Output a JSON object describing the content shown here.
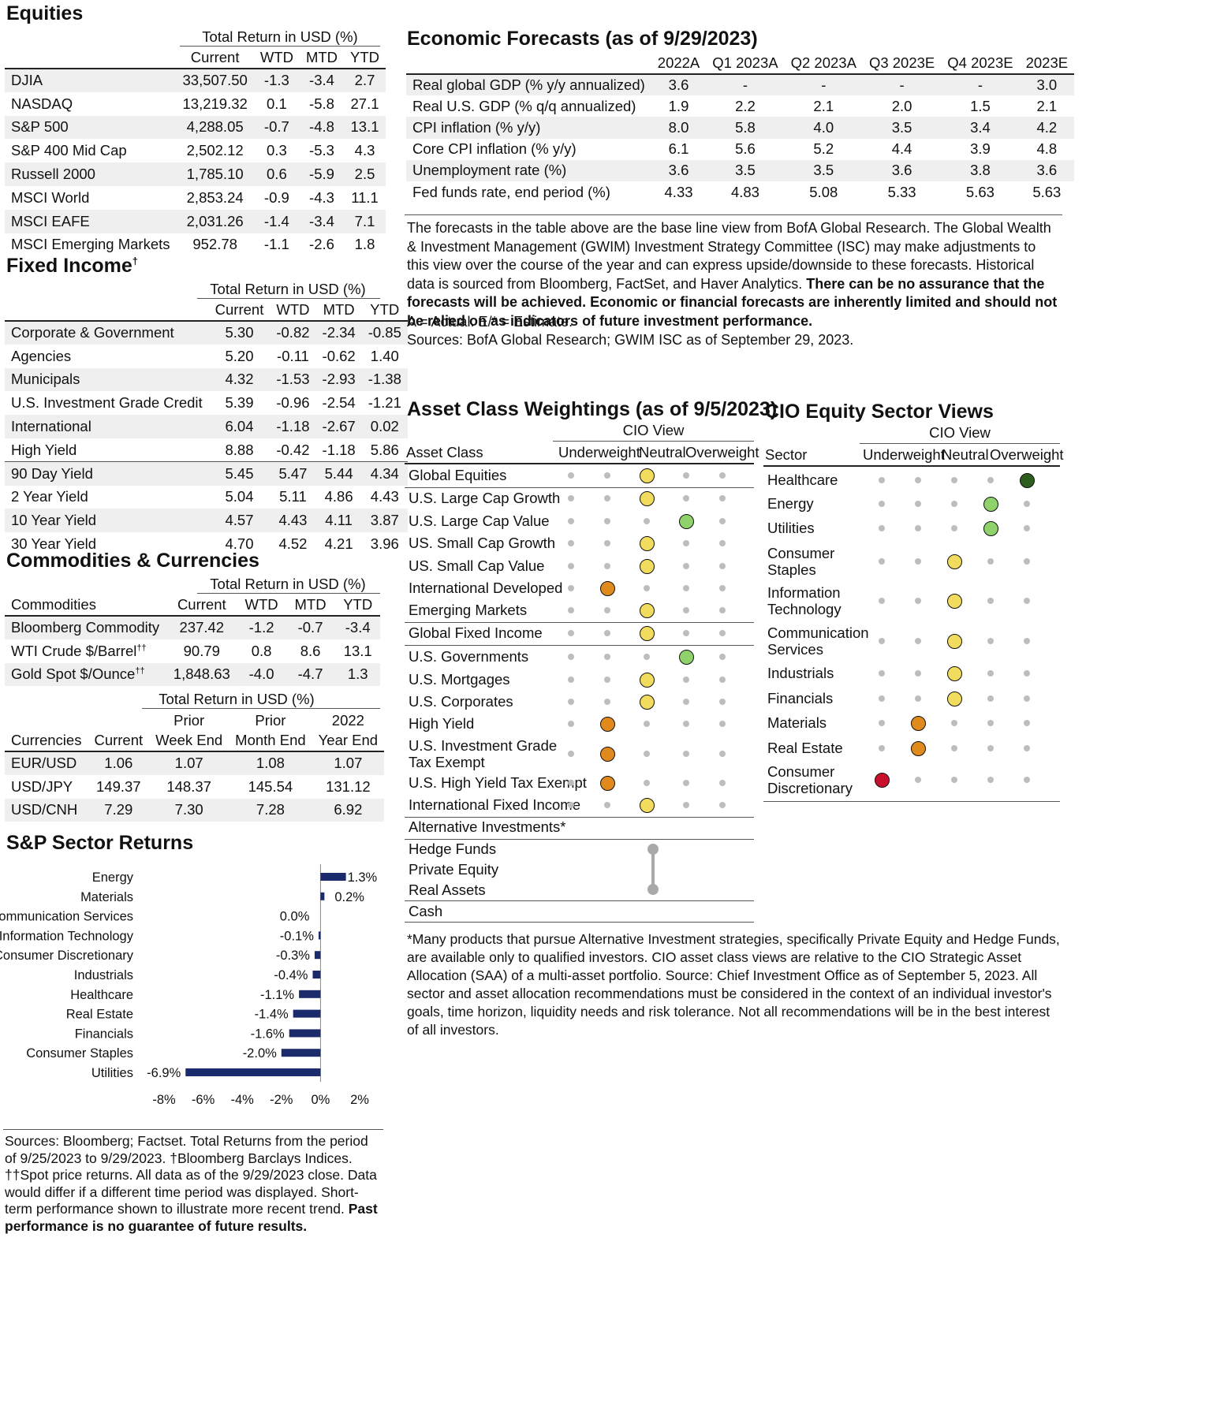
{
  "equities": {
    "title": "Equities",
    "group_header": "Total Return in USD (%)",
    "columns": [
      "",
      "Current",
      "WTD",
      "MTD",
      "YTD"
    ],
    "rows": [
      [
        "DJIA",
        "33,507.50",
        "-1.3",
        "-3.4",
        "2.7"
      ],
      [
        "NASDAQ",
        "13,219.32",
        "0.1",
        "-5.8",
        "27.1"
      ],
      [
        "S&P 500",
        "4,288.05",
        "-0.7",
        "-4.8",
        "13.1"
      ],
      [
        "S&P 400 Mid Cap",
        "2,502.12",
        "0.3",
        "-5.3",
        "4.3"
      ],
      [
        "Russell 2000",
        "1,785.10",
        "0.6",
        "-5.9",
        "2.5"
      ],
      [
        "MSCI World",
        "2,853.24",
        "-0.9",
        "-4.3",
        "11.1"
      ],
      [
        "MSCI EAFE",
        "2,031.26",
        "-1.4",
        "-3.4",
        "7.1"
      ],
      [
        "MSCI Emerging Markets",
        "952.78",
        "-1.1",
        "-2.6",
        "1.8"
      ]
    ]
  },
  "fixed_income": {
    "title": "Fixed Income",
    "title_mark": "†",
    "group_header": "Total Return in USD (%)",
    "columns": [
      "",
      "Current",
      "WTD",
      "MTD",
      "YTD"
    ],
    "rows": [
      [
        "Corporate & Government",
        "5.30",
        "-0.82",
        "-2.34",
        "-0.85"
      ],
      [
        "Agencies",
        "5.20",
        "-0.11",
        "-0.62",
        "1.40"
      ],
      [
        "Municipals",
        "4.32",
        "-1.53",
        "-2.93",
        "-1.38"
      ],
      [
        "U.S. Investment Grade Credit",
        "5.39",
        "-0.96",
        "-2.54",
        "-1.21"
      ],
      [
        "International",
        "6.04",
        "-1.18",
        "-2.67",
        "0.02"
      ],
      [
        "High Yield",
        "8.88",
        "-0.42",
        "-1.18",
        "5.86"
      ],
      [
        "90 Day Yield",
        "5.45",
        "5.47",
        "5.44",
        "4.34"
      ],
      [
        "2 Year Yield",
        "5.04",
        "5.11",
        "4.86",
        "4.43"
      ],
      [
        "10 Year Yield",
        "4.57",
        "4.43",
        "4.11",
        "3.87"
      ],
      [
        "30 Year Yield",
        "4.70",
        "4.52",
        "4.21",
        "3.96"
      ]
    ]
  },
  "commodities": {
    "title": "Commodities & Currencies",
    "group_header": "Total Return in USD (%)",
    "columns": [
      "Commodities",
      "Current",
      "WTD",
      "MTD",
      "YTD"
    ],
    "rows": [
      [
        "Bloomberg Commodity",
        "",
        "237.42",
        "-1.2",
        "-0.7",
        "-3.4"
      ],
      [
        "WTI Crude $/Barrel",
        "††",
        "90.79",
        "0.8",
        "8.6",
        "13.1"
      ],
      [
        "Gold Spot $/Ounce",
        "††",
        "1,848.63",
        "-4.0",
        "-4.7",
        "1.3"
      ]
    ]
  },
  "currencies": {
    "group_header": "Total Return in USD (%)",
    "columns_top": [
      "",
      "",
      "Prior",
      "Prior",
      "2022"
    ],
    "columns": [
      "Currencies",
      "Current",
      "Week End",
      "Month End",
      "Year End"
    ],
    "rows": [
      [
        "EUR/USD",
        "1.06",
        "1.07",
        "1.08",
        "1.07"
      ],
      [
        "USD/JPY",
        "149.37",
        "148.37",
        "145.54",
        "131.12"
      ],
      [
        "USD/CNH",
        "7.29",
        "7.30",
        "7.28",
        "6.92"
      ]
    ]
  },
  "sector_returns": {
    "title": "S&P Sector Returns",
    "chart_data": {
      "type": "bar",
      "orientation": "horizontal",
      "categories": [
        "Energy",
        "Materials",
        "Communication Services",
        "Information Technology",
        "Consumer Discretionary",
        "Industrials",
        "Healthcare",
        "Real Estate",
        "Financials",
        "Consumer Staples",
        "Utilities"
      ],
      "values": [
        1.3,
        0.2,
        0.0,
        -0.1,
        -0.3,
        -0.4,
        -1.1,
        -1.4,
        -1.6,
        -2.0,
        -6.9
      ],
      "data_labels": [
        "1.3%",
        "0.2%",
        "0.0%",
        "-0.1%",
        "-0.3%",
        "-0.4%",
        "-1.1%",
        "-1.4%",
        "-1.6%",
        "-2.0%",
        "-6.9%"
      ],
      "xlim": [
        -8,
        2
      ],
      "xticks": [
        -8,
        -6,
        -4,
        -2,
        0,
        2
      ],
      "xtick_labels": [
        "-8%",
        "-6%",
        "-4%",
        "-2%",
        "0%",
        "2%"
      ],
      "bar_color": "#1b2a6b",
      "title": "",
      "xlabel": "",
      "ylabel": ""
    }
  },
  "left_footnote": {
    "text": "Sources: Bloomberg; Factset. Total Returns from the period of 9/25/2023 to 9/29/2023. †Bloomberg Barclays Indices. ††Spot price returns. All data as of the 9/29/2023 close. Data would differ if a different time period was displayed. Short-term performance shown to illustrate more recent trend. ",
    "bold": "Past performance is no guarantee of future results."
  },
  "economic_forecasts": {
    "title": "Economic Forecasts (as of 9/29/2023)",
    "columns": [
      "",
      "2022A",
      "Q1 2023A",
      "Q2 2023A",
      "Q3 2023E",
      "Q4 2023E",
      "2023E"
    ],
    "rows": [
      [
        "Real global GDP (% y/y annualized)",
        "3.6",
        "-",
        "-",
        "-",
        "-",
        "3.0"
      ],
      [
        "Real U.S. GDP (% q/q annualized)",
        "1.9",
        "2.2",
        "2.1",
        "2.0",
        "1.5",
        "2.1"
      ],
      [
        "CPI inflation (% y/y)",
        "8.0",
        "5.8",
        "4.0",
        "3.5",
        "3.4",
        "4.2"
      ],
      [
        "Core CPI inflation (% y/y)",
        "6.1",
        "5.6",
        "5.2",
        "4.4",
        "3.9",
        "4.8"
      ],
      [
        "Unemployment rate (%)",
        "3.6",
        "3.5",
        "3.5",
        "3.6",
        "3.8",
        "3.6"
      ],
      [
        "Fed funds rate, end period (%)",
        "4.33",
        "4.83",
        "5.08",
        "5.33",
        "5.63",
        "5.63"
      ]
    ],
    "note_plain": "The forecasts in the table above are the base line view from BofA Global Research. The Global Wealth & Investment Management (GWIM) Investment Strategy Committee (ISC) may make adjustments to this view over the course of the year and can express upside/downside to these forecasts. Historical data is sourced from Bloomberg, FactSet, and Haver Analytics. ",
    "note_bold": "There can be no assurance that the forecasts will be achieved. Economic or financial forecasts are inherently limited and should not be relied on as indicators of future investment performance.",
    "note_line2": "A = Actual.   E/* = Estimate.",
    "note_line3": "Sources: BofA Global Research; GWIM ISC as of September 29, 2023."
  },
  "asset_class": {
    "title": "Asset Class Weightings (as of 9/5/2023)",
    "cio_view": "CIO View",
    "col_label": "Asset Class",
    "scale": [
      "Underweight",
      "Neutral",
      "Overweight"
    ],
    "rows": [
      {
        "label": "Global Equities",
        "pos": 2,
        "color": "#f2dc5d"
      },
      {
        "label": "U.S. Large Cap Growth",
        "pos": 2,
        "color": "#f2dc5d"
      },
      {
        "label": "U.S. Large Cap Value",
        "pos": 3,
        "color": "#8fd16a"
      },
      {
        "label": "US. Small Cap Growth",
        "pos": 2,
        "color": "#f2dc5d"
      },
      {
        "label": "US. Small Cap Value",
        "pos": 2,
        "color": "#f2dc5d"
      },
      {
        "label": "International Developed",
        "pos": 1,
        "color": "#e08a1e"
      },
      {
        "label": "Emerging Markets",
        "pos": 2,
        "color": "#f2dc5d"
      },
      {
        "label": "Global Fixed Income",
        "pos": 2,
        "color": "#f2dc5d"
      },
      {
        "label": "U.S. Governments",
        "pos": 3,
        "color": "#8fd16a"
      },
      {
        "label": "U.S. Mortgages",
        "pos": 2,
        "color": "#f2dc5d"
      },
      {
        "label": "U.S. Corporates",
        "pos": 2,
        "color": "#f2dc5d"
      },
      {
        "label": "High Yield",
        "pos": 1,
        "color": "#e08a1e"
      },
      {
        "label": "U.S. Investment Grade",
        "label2": "Tax Exempt",
        "pos": 1,
        "color": "#e08a1e"
      },
      {
        "label": "U.S. High Yield Tax Exempt",
        "pos": 1,
        "color": "#e08a1e"
      },
      {
        "label": "International Fixed Income",
        "pos": 2,
        "color": "#f2dc5d"
      }
    ],
    "alt_label": "Alternative Investments*",
    "alt_rows": [
      "Hedge Funds",
      "Private Equity",
      "Real Assets"
    ],
    "cash_label": "Cash",
    "footnote": "*Many products that pursue Alternative Investment strategies, specifically Private Equity and Hedge Funds, are available only to qualified investors. CIO asset class views are relative to the CIO Strategic Asset Allocation (SAA) of a multi-asset portfolio. Source: Chief Investment Office as of September 5, 2023. All sector and asset allocation recommendations must be considered in the context of an individual investor's goals, time horizon, liquidity needs and risk tolerance. Not all recommendations will be in the best interest of all investors."
  },
  "sector_views": {
    "title": "CIO Equity Sector Views",
    "cio_view": "CIO View",
    "col_label": "Sector",
    "scale": [
      "Underweight",
      "Neutral",
      "Overweight"
    ],
    "rows": [
      {
        "label": "Healthcare",
        "pos": 4,
        "color": "#2e5e1e"
      },
      {
        "label": "Energy",
        "pos": 3,
        "color": "#8fd16a"
      },
      {
        "label": "Utilities",
        "pos": 3,
        "color": "#8fd16a"
      },
      {
        "label": "Consumer",
        "label2": "Staples",
        "pos": 2,
        "color": "#f2dc5d"
      },
      {
        "label": "Information",
        "label2": "Technology",
        "pos": 2,
        "color": "#f2dc5d"
      },
      {
        "label": "Communication",
        "label2": "Services",
        "pos": 2,
        "color": "#f2dc5d"
      },
      {
        "label": "Industrials",
        "pos": 2,
        "color": "#f2dc5d"
      },
      {
        "label": "Financials",
        "pos": 2,
        "color": "#f2dc5d"
      },
      {
        "label": "Materials",
        "pos": 1,
        "color": "#e08a1e"
      },
      {
        "label": "Real Estate",
        "pos": 1,
        "color": "#e08a1e"
      },
      {
        "label": "Consumer",
        "label2": "Discretionary",
        "pos": 0,
        "color": "#c8102e"
      }
    ]
  }
}
